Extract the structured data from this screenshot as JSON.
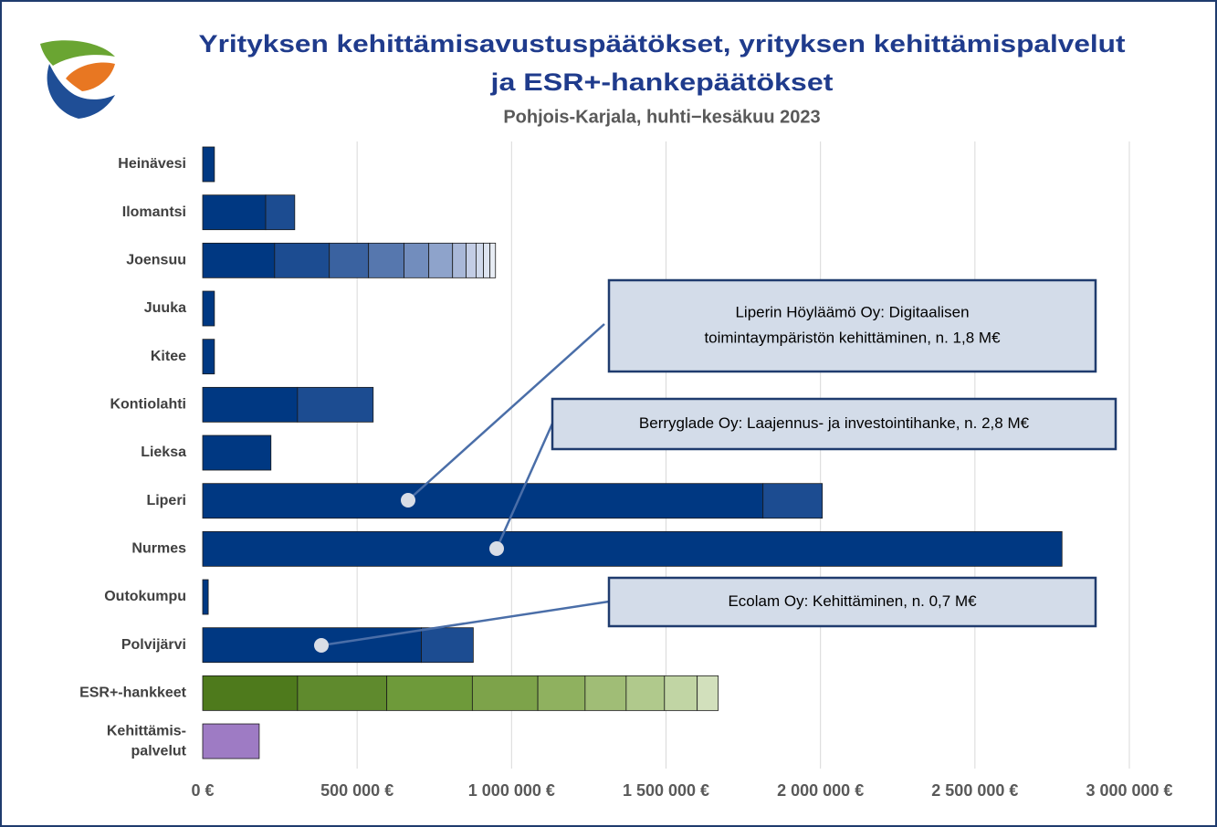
{
  "chart_data": {
    "type": "stacked-barh",
    "title": [
      "Yrityksen kehittämisavustuspäätökset, yrityksen kehittämispalvelut",
      "ja ESR+-hankepäätökset"
    ],
    "subtitle": "Pohjois-Karjala, huhti−kesäkuu 2023",
    "bars": [
      {
        "category": "Heinävesi",
        "values": [
          38000
        ],
        "colors": [
          "#003882"
        ]
      },
      {
        "category": "Ilomantsi",
        "values": [
          204000,
          94000
        ],
        "colors": [
          "#003882",
          "#1c4c91"
        ]
      },
      {
        "category": "Joensuu",
        "values": [
          233000,
          177000,
          127000,
          115000,
          80000,
          77000,
          44000,
          32000,
          24000,
          21000,
          18000
        ],
        "colors": [
          "#003882",
          "#1c4c91",
          "#3a62a0",
          "#5677ae",
          "#728dbd",
          "#8ea3cb",
          "#a9b8d8",
          "#c3cde5",
          "#d0d9eb",
          "#dde4f0",
          "#e8edf5"
        ]
      },
      {
        "category": "Juuka",
        "values": [
          38000
        ],
        "colors": [
          "#003882"
        ]
      },
      {
        "category": "Kitee",
        "values": [
          38000
        ],
        "colors": [
          "#003882"
        ]
      },
      {
        "category": "Kontiolahti",
        "values": [
          307000,
          245000
        ],
        "colors": [
          "#003882",
          "#1c4c91"
        ]
      },
      {
        "category": "Lieksa",
        "values": [
          221000
        ],
        "colors": [
          "#003882"
        ]
      },
      {
        "category": "Liperi",
        "values": [
          1814000,
          192000
        ],
        "colors": [
          "#003882",
          "#1c4c91"
        ]
      },
      {
        "category": "Nurmes",
        "values": [
          2782000
        ],
        "colors": [
          "#003882"
        ]
      },
      {
        "category": "Outokumpu",
        "values": [
          18000
        ],
        "colors": [
          "#003882"
        ]
      },
      {
        "category": "Polvijärvi",
        "values": [
          708000,
          168000
        ],
        "colors": [
          "#003882",
          "#1c4c91"
        ]
      },
      {
        "category": "ESR+-hankkeet",
        "values": [
          307000,
          289000,
          277000,
          212000,
          153000,
          133000,
          124000,
          106000,
          68000
        ],
        "colors": [
          "#4e7a1c",
          "#5f8a2d",
          "#6e9a3a",
          "#7da34a",
          "#8fb15f",
          "#a0bd76",
          "#b0c98c",
          "#c1d5a4",
          "#d2e0bc"
        ]
      },
      {
        "category": [
          "Kehittämis-",
          "palvelut"
        ],
        "values": [
          183000
        ],
        "colors": [
          "#9e7bc4"
        ]
      }
    ],
    "xlim": [
      0,
      3000000
    ],
    "xticks": [
      {
        "value": 0,
        "label": "0 €"
      },
      {
        "value": 500000,
        "label": "500 000 €"
      },
      {
        "value": 1000000,
        "label": "1 000 000 €"
      },
      {
        "value": 1500000,
        "label": "1 500 000 €"
      },
      {
        "value": 2000000,
        "label": "2 000 000 €"
      },
      {
        "value": 2500000,
        "label": "2 500 000 €"
      },
      {
        "value": 3000000,
        "label": "3 000 000 €"
      }
    ],
    "grid": true,
    "annotations": [
      {
        "text": [
          "Liperin Höyläämö Oy: Digitaalisen",
          "toimintaympäristön kehittäminen, n. 1,8 M€"
        ]
      },
      {
        "text": [
          "Berryglade Oy: Laajennus- ja investointihanke, n. 2,8 M€"
        ]
      },
      {
        "text": [
          "Ecolam Oy: Kehittäminen, n. 0,7 M€"
        ]
      }
    ]
  }
}
